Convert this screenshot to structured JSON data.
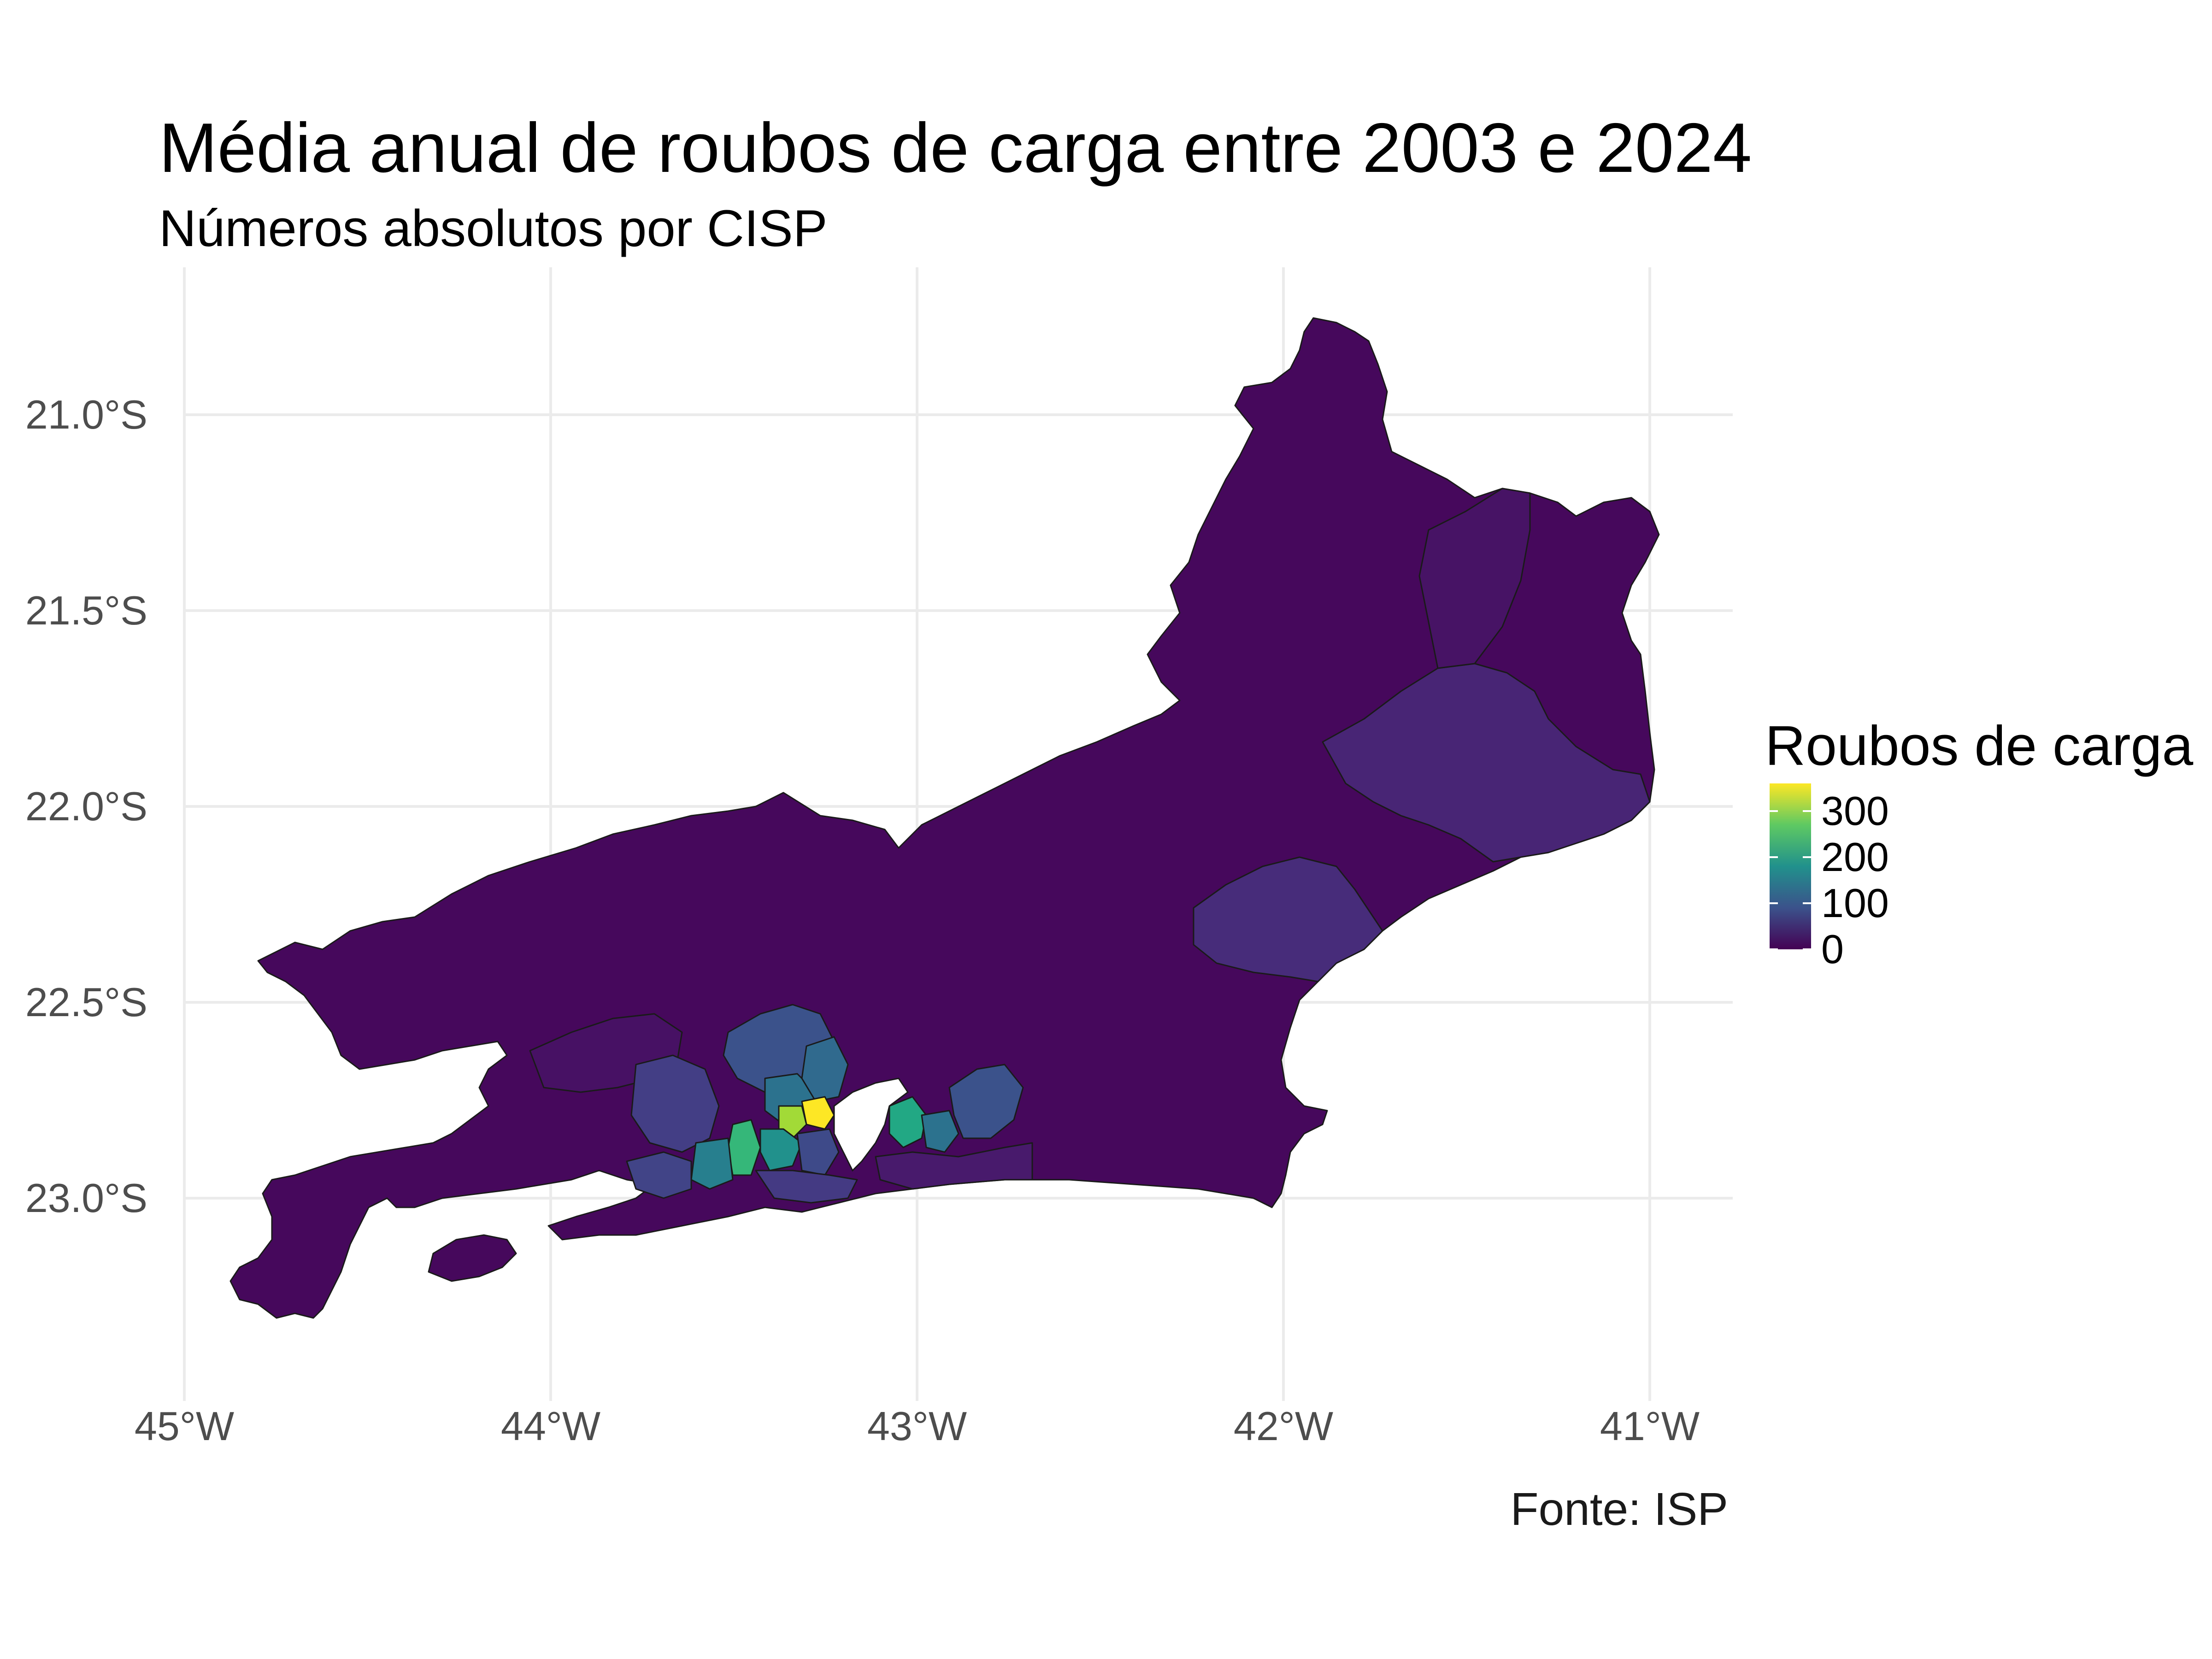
{
  "title": "Média anual de roubos de carga entre 2003 e 2024",
  "subtitle": "Números absolutos por CISP",
  "caption": "Fonte: ISP",
  "colors": {
    "low": "#440154",
    "mid1": "#31688e",
    "mid2": "#21918c",
    "mid3": "#35b779",
    "high": "#fde725",
    "grid": "#ebebeb"
  },
  "chart_data": {
    "type": "choropleth",
    "xlim": [
      -45.0,
      -40.8
    ],
    "ylim": [
      -23.4,
      -20.7
    ],
    "x_ticks": [
      -45,
      -44,
      -43,
      -42,
      -41
    ],
    "x_tick_labels": [
      "45°W",
      "44°W",
      "43°W",
      "42°W",
      "41°W"
    ],
    "y_ticks": [
      -21.0,
      -21.5,
      -22.0,
      -22.5,
      -23.0
    ],
    "y_tick_labels": [
      "21.0°S",
      "21.5°S",
      "22.0°S",
      "22.5°S",
      "23.0°S"
    ],
    "grid": true,
    "legend": {
      "title": "Roubos de carga",
      "position": "right",
      "scale": "viridis",
      "range": [
        0,
        360
      ],
      "breaks": [
        0,
        100,
        200,
        300
      ],
      "break_labels": [
        "0",
        "100",
        "200",
        "300"
      ]
    }
  }
}
